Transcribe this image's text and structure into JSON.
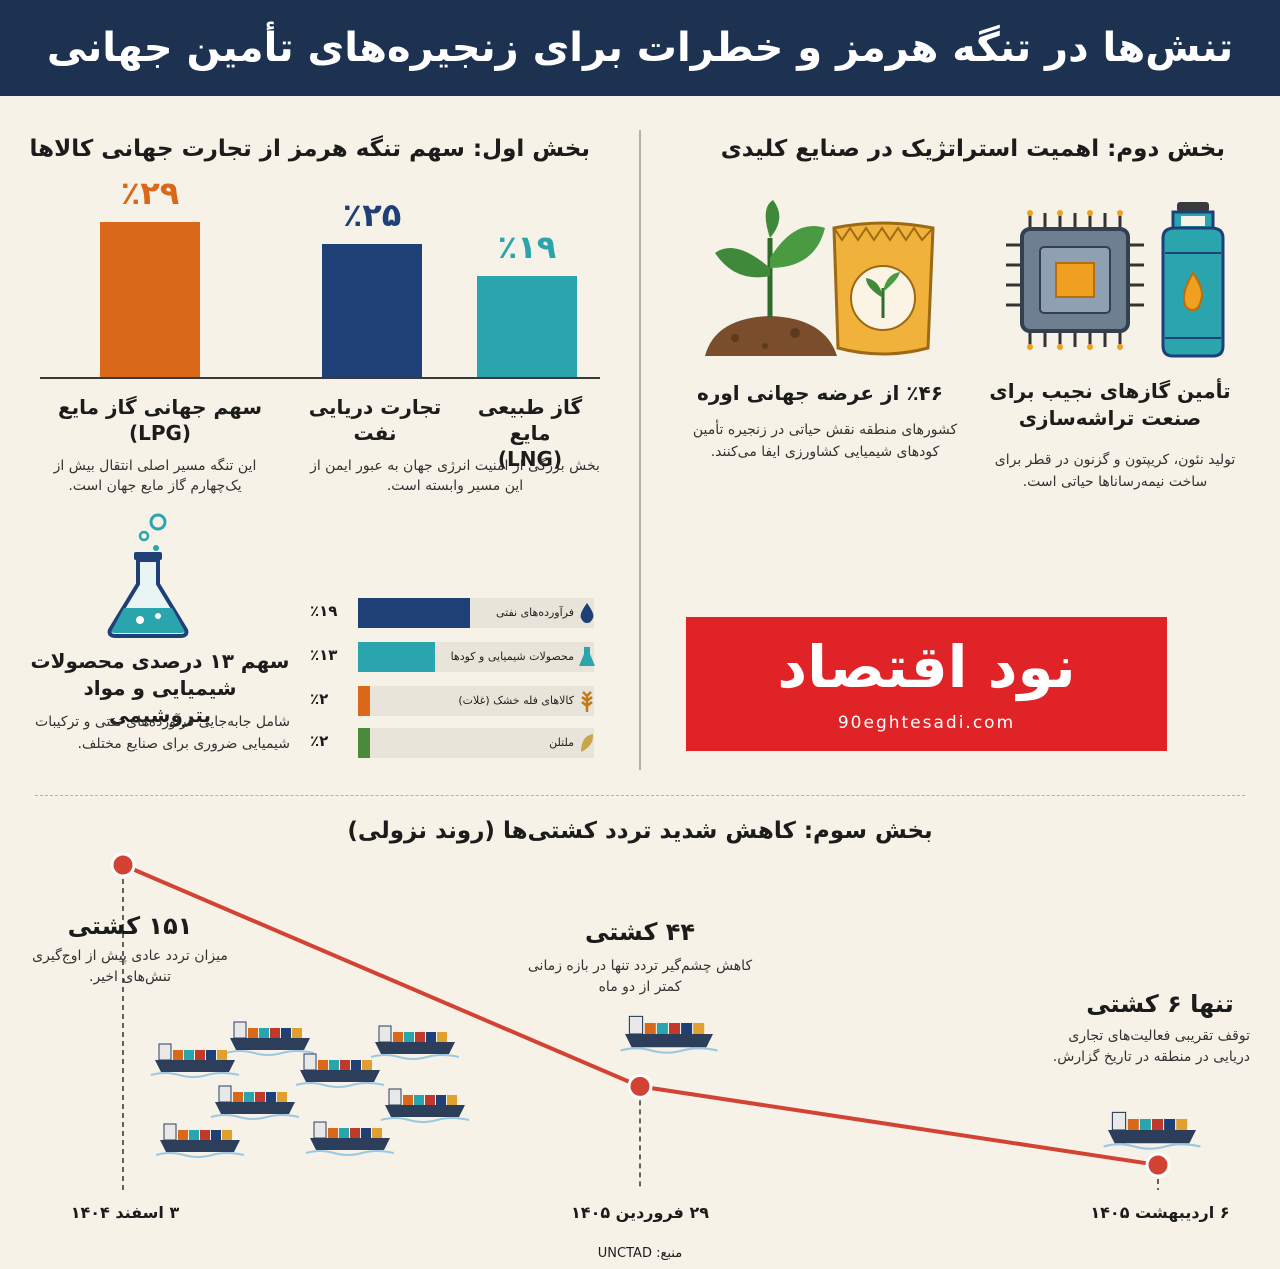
{
  "header": {
    "title": "تنش‌ها در تنگه هرمز و خطرات برای زنجیره‌های تأمین جهانی"
  },
  "section1": {
    "title": "بخش اول: سهم تنگه هرمز از تجارت جهانی کالاها",
    "bars": [
      {
        "pct": "٪۲۹",
        "value": 29,
        "color": "#d9681a",
        "label_line1": "سهم جهانی گاز مایع",
        "label_line2": "(LPG)",
        "desc": "این تنگه مسیر اصلی انتقال بیش از یک‌چهارم گاز مایع جهان است."
      },
      {
        "pct": "٪۲۵",
        "value": 25,
        "color": "#1f3f77",
        "label_line1": "تجارت دریایی",
        "label_line2": "نفت",
        "desc": "بخش بزرگی از امنیت انرژی جهان به عبور ایمن از این مسیر وابسته است."
      },
      {
        "pct": "٪۱۹",
        "value": 19,
        "color": "#2aa5ad",
        "label_line1": "گاز طبیعی مایع",
        "label_line2": "(LNG)",
        "desc": ""
      }
    ],
    "chemicals": {
      "title": "سهم ۱۳ درصدی محصولات شیمیایی و مواد پتروشیمی",
      "desc": "شامل جابه‌جایی فرآورده‌های نفتی و ترکیبات شیمیایی ضروری برای صنایع مختلف.",
      "icon": "flask-icon"
    },
    "hbars": [
      {
        "name": "فرآورده‌های نفتی",
        "pct": "٪۱۹",
        "value": 19,
        "color": "#1f3f77",
        "icon": "drop-icon"
      },
      {
        "name": "محصولات شیمیایی و کودها",
        "pct": "٪۱۳",
        "value": 13,
        "color": "#2aa5ad",
        "icon": "flask-icon"
      },
      {
        "name": "کالاهای فله خشک (غلات)",
        "pct": "٪۲",
        "value": 2,
        "color": "#d9681a",
        "icon": "wheat-icon"
      },
      {
        "name": "ملتلن",
        "pct": "٪۲",
        "value": 2,
        "color": "#4a8a3a",
        "icon": "grain-icon"
      }
    ]
  },
  "section2": {
    "title": "بخش دوم: اهمیت استراتژیک در صنایع کلیدی",
    "items": [
      {
        "title_line1": "تأمین گازهای نجیب برای",
        "title_line2": "صنعت تراشه‌سازی",
        "desc": "تولید نئون، کریپتون و گزنون در قطر برای ساخت نیمه‌رساناها حیاتی است.",
        "icons": [
          "chip-icon",
          "gas-cylinder-icon"
        ]
      },
      {
        "title_line1": "٪۴۶ از عرضه جهانی اوره",
        "title_line2": "",
        "desc": "کشورهای منطقه نقش حیاتی در زنجیره تأمین کودهای شیمیایی کشاورزی ایفا می‌کنند.",
        "icons": [
          "plant-icon",
          "fertilizer-bag-icon"
        ]
      }
    ],
    "logo": {
      "text": "نود اقتصاد",
      "sub": "90eghtesadi.com"
    }
  },
  "section3": {
    "title": "بخش سوم: کاهش شدید تردد کشتی‌ها (روند نزولی)",
    "chart_data": {
      "type": "line",
      "x": [
        "۳ اسفند ۱۴۰۴",
        "۲۹ فروردین ۱۴۰۵",
        "۶ اردیبهشت ۱۴۰۵"
      ],
      "values": [
        151,
        44,
        6
      ],
      "color": "#d24334"
    },
    "points": [
      {
        "title": "۱۵۱ کشتی",
        "desc": "میزان تردد عادی پیش از اوج‌گیری تنش‌های اخیر."
      },
      {
        "title": "۴۴ کشتی",
        "desc": "کاهش چشم‌گیر تردد تنها در بازه زمانی کمتر از دو ماه"
      },
      {
        "title": "تنها ۶ کشتی",
        "desc": "توقف تقریبی فعالیت‌های تجاری دریایی در منطقه در تاریخ گزارش."
      }
    ],
    "source": "منبع: UNCTAD"
  }
}
